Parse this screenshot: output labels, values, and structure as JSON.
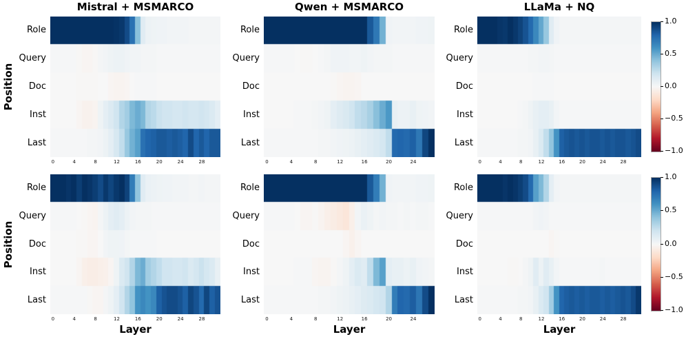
{
  "figure": {
    "xlabel": "Layer",
    "ylabel": "Position",
    "background": "#ffffff",
    "colorbar": {
      "tick_labels": [
        "1.0",
        "0.5",
        "0.0",
        "−0.5",
        "−1.0"
      ],
      "tick_values": [
        1.0,
        0.5,
        0.0,
        -0.5,
        -1.0
      ],
      "range": [
        -1.0,
        1.0
      ]
    },
    "colormap": {
      "name": "RdBu",
      "stops": [
        "#67001f",
        "#b2182b",
        "#d6604d",
        "#f4a582",
        "#fddbc7",
        "#f7f7f7",
        "#d1e5f0",
        "#92c5de",
        "#4393c3",
        "#2166ac",
        "#053061"
      ]
    }
  },
  "chart_data": [
    {
      "type": "heatmap",
      "title": "Mistral + MSMARCO",
      "rows": [
        "Role",
        "Query",
        "Doc",
        "Inst",
        "Last"
      ],
      "n_layers": 32,
      "xticks": [
        0,
        4,
        8,
        12,
        16,
        20,
        24,
        28
      ],
      "zlim": [
        -1,
        1
      ],
      "values": [
        [
          1,
          1,
          1,
          1,
          1,
          1,
          1,
          1,
          1,
          1,
          1,
          1,
          0.99,
          0.97,
          0.9,
          0.75,
          0.42,
          0.12,
          0.06,
          0.05,
          0.04,
          0.04,
          0.03,
          0.03,
          0.03,
          0.03,
          0.02,
          0.02,
          0.02,
          0.02,
          0.02,
          0.02
        ],
        [
          0.01,
          0.01,
          0.01,
          0.01,
          0.01,
          -0.01,
          -0.02,
          -0.02,
          -0.01,
          0.02,
          0.03,
          0.05,
          0.06,
          0.06,
          0.04,
          0.03,
          0.03,
          0.02,
          0.02,
          0.02,
          0.01,
          0.01,
          0.01,
          0.01,
          0.01,
          0.01,
          0.01,
          0.01,
          0.01,
          0.01,
          0.01,
          0.01
        ],
        [
          0,
          0,
          0,
          0,
          0,
          -0.01,
          -0.01,
          -0.01,
          -0.01,
          0,
          0,
          -0.02,
          -0.03,
          -0.03,
          -0.02,
          0,
          0.01,
          0.01,
          0.01,
          0.01,
          0,
          0,
          0,
          0,
          0,
          0,
          0,
          0,
          0,
          0,
          0,
          0
        ],
        [
          0,
          0,
          0,
          0,
          0,
          -0.02,
          -0.04,
          -0.04,
          -0.03,
          0.05,
          0.1,
          0.14,
          0.2,
          0.3,
          0.35,
          0.45,
          0.5,
          0.45,
          0.3,
          0.27,
          0.22,
          0.2,
          0.2,
          0.18,
          0.18,
          0.2,
          0.18,
          0.18,
          0.2,
          0.18,
          0.15,
          0.1
        ],
        [
          0.01,
          0.01,
          0.01,
          0.01,
          0.01,
          0.01,
          0.01,
          0.02,
          0.02,
          0.03,
          0.06,
          0.1,
          0.17,
          0.25,
          0.38,
          0.48,
          0.55,
          0.75,
          0.8,
          0.82,
          0.85,
          0.85,
          0.83,
          0.85,
          0.83,
          0.8,
          0.9,
          0.8,
          0.85,
          0.8,
          0.85,
          0.85
        ]
      ]
    },
    {
      "type": "heatmap",
      "title": "Qwen + MSMARCO",
      "rows": [
        "Role",
        "Query",
        "Doc",
        "Inst",
        "Last"
      ],
      "n_layers": 28,
      "xticks": [
        0,
        4,
        8,
        12,
        16,
        20,
        24
      ],
      "zlim": [
        -1,
        1
      ],
      "values": [
        [
          1,
          1,
          1,
          1,
          1,
          1,
          1,
          1,
          1,
          1,
          1,
          1,
          1,
          1,
          1,
          1,
          1,
          0.85,
          0.72,
          0.48,
          0.04,
          0.03,
          0.03,
          0.03,
          0.03,
          0.04,
          0.04,
          0.05
        ],
        [
          0.01,
          0.01,
          0.01,
          0.01,
          0.01,
          0,
          -0.01,
          -0.01,
          0,
          0.01,
          0.02,
          0.04,
          0.04,
          0.04,
          0.03,
          0.03,
          0.05,
          0.03,
          0.02,
          0.02,
          0.02,
          0.01,
          0.01,
          0.01,
          0.01,
          0.01,
          0.01,
          0.01
        ],
        [
          0,
          0,
          0,
          0,
          0,
          0,
          0,
          0,
          0,
          0,
          0,
          -0.01,
          -0.02,
          -0.03,
          -0.03,
          -0.02,
          0,
          0,
          0,
          0,
          0,
          0,
          0,
          0,
          0,
          0,
          0,
          0
        ],
        [
          0,
          0,
          0,
          0,
          0,
          0.01,
          0.01,
          0.01,
          0.02,
          0.03,
          0.05,
          0.1,
          0.13,
          0.16,
          0.2,
          0.25,
          0.28,
          0.33,
          0.42,
          0.5,
          0.58,
          0.08,
          0.06,
          0.06,
          0.08,
          0.05,
          0.04,
          0.03
        ],
        [
          0.01,
          0.01,
          0.01,
          0.01,
          0.01,
          0.01,
          0.01,
          0.01,
          0.01,
          0.02,
          0.02,
          0.03,
          0.04,
          0.05,
          0.06,
          0.08,
          0.1,
          0.12,
          0.15,
          0.18,
          0.25,
          0.78,
          0.8,
          0.78,
          0.82,
          0.72,
          0.92,
          1
        ]
      ]
    },
    {
      "type": "heatmap",
      "title": "LLaMa + NQ",
      "rows": [
        "Role",
        "Query",
        "Doc",
        "Inst",
        "Last"
      ],
      "n_layers": 32,
      "xticks": [
        0,
        4,
        8,
        12,
        16,
        20,
        24,
        28
      ],
      "zlim": [
        -1,
        1
      ],
      "values": [
        [
          1,
          1,
          1,
          1,
          0.98,
          0.97,
          1,
          0.97,
          0.93,
          0.87,
          0.78,
          0.65,
          0.52,
          0.38,
          0.12,
          0.04,
          0.02,
          0.02,
          0.02,
          0.02,
          0.02,
          0.02,
          0.02,
          0.02,
          0.02,
          0.02,
          0.02,
          0.02,
          0.02,
          0.02,
          0.02,
          0.02
        ],
        [
          0.01,
          0.01,
          0.01,
          0.01,
          0.01,
          0.01,
          0.01,
          0.01,
          0.01,
          0.01,
          0.02,
          0.02,
          0.03,
          0.03,
          0.02,
          0.01,
          0.01,
          0.01,
          0.01,
          0.01,
          0.01,
          0.01,
          0.01,
          0.01,
          0.01,
          0.01,
          0.01,
          0.01,
          0.01,
          0.01,
          0.01,
          0.01
        ],
        [
          0,
          0,
          0,
          0,
          0,
          0,
          0,
          0,
          0,
          0,
          0,
          0.01,
          0.01,
          0.01,
          0.01,
          0,
          0,
          0,
          0,
          0,
          0,
          0,
          0,
          0,
          0,
          0,
          0,
          0,
          0,
          0,
          0,
          0
        ],
        [
          0,
          0,
          0,
          0,
          0,
          0,
          0,
          0,
          0.01,
          0.02,
          0.05,
          0.08,
          0.1,
          0.1,
          0.08,
          0.03,
          0.01,
          0.01,
          0.01,
          0.01,
          0.01,
          0.01,
          0.01,
          0.01,
          0.01,
          0.01,
          0.01,
          0.01,
          0.01,
          0.01,
          0.01,
          0.01
        ],
        [
          0.01,
          0.01,
          0.01,
          0.01,
          0.01,
          0.01,
          0.01,
          0.01,
          0.02,
          0.02,
          0.03,
          0.08,
          0.15,
          0.25,
          0.4,
          0.6,
          0.82,
          0.85,
          0.87,
          0.85,
          0.87,
          0.85,
          0.87,
          0.87,
          0.85,
          0.87,
          0.85,
          0.87,
          0.87,
          0.85,
          0.87,
          0.9
        ]
      ]
    },
    {
      "type": "heatmap",
      "title": "",
      "rows": [
        "Role",
        "Query",
        "Doc",
        "Inst",
        "Last"
      ],
      "n_layers": 32,
      "xticks": [
        0,
        4,
        8,
        12,
        16,
        20,
        24,
        28
      ],
      "zlim": [
        -1,
        1
      ],
      "values": [
        [
          1,
          1,
          1,
          0.98,
          1,
          0.95,
          1,
          0.98,
          0.95,
          0.9,
          0.97,
          0.92,
          0.97,
          1,
          0.93,
          0.7,
          0.4,
          0.12,
          0.07,
          0.06,
          0.05,
          0.04,
          0.04,
          0.03,
          0.03,
          0.03,
          0.02,
          0.02,
          0.03,
          0.02,
          0.02,
          0.02
        ],
        [
          0.01,
          0.01,
          0.01,
          0.01,
          0.01,
          0,
          -0.01,
          -0.02,
          -0.03,
          0.02,
          0.06,
          0.1,
          0.12,
          0.1,
          0.06,
          0.03,
          0.02,
          0.02,
          0.02,
          0.01,
          0.01,
          0.01,
          0.01,
          0.01,
          0.01,
          0.01,
          0.01,
          0.01,
          0.01,
          0.01,
          0.01,
          0.01
        ],
        [
          0,
          0,
          0,
          0,
          0,
          -0.01,
          -0.01,
          -0.02,
          -0.02,
          0,
          0.03,
          0.05,
          0.05,
          0.04,
          0.02,
          0.01,
          0.01,
          0.01,
          0.01,
          0.01,
          0,
          0,
          0,
          0,
          0,
          0,
          0,
          0,
          0,
          0,
          0,
          0
        ],
        [
          0,
          0,
          0,
          0,
          0,
          -0.02,
          -0.06,
          -0.07,
          -0.07,
          -0.06,
          -0.05,
          -0.02,
          0.05,
          0.15,
          0.2,
          0.3,
          0.45,
          0.5,
          0.35,
          0.3,
          0.25,
          0.2,
          0.2,
          0.18,
          0.18,
          0.2,
          0.15,
          0.18,
          0.22,
          0.18,
          0.15,
          0.08
        ],
        [
          0.01,
          0.01,
          0.01,
          0.01,
          0.01,
          0.01,
          0.01,
          -0.01,
          -0.02,
          -0.02,
          0.02,
          0.05,
          0.1,
          0.2,
          0.3,
          0.4,
          0.6,
          0.65,
          0.6,
          0.65,
          0.82,
          0.87,
          0.9,
          0.9,
          0.87,
          0.82,
          0.92,
          0.87,
          0.78,
          0.92,
          0.82,
          0.87
        ]
      ]
    },
    {
      "type": "heatmap",
      "title": "",
      "rows": [
        "Role",
        "Query",
        "Doc",
        "Inst",
        "Last"
      ],
      "n_layers": 28,
      "xticks": [
        0,
        4,
        8,
        12,
        16,
        20,
        24
      ],
      "zlim": [
        -1,
        1
      ],
      "values": [
        [
          1,
          1,
          1,
          1,
          1,
          1,
          1,
          1,
          1,
          1,
          1,
          1,
          1,
          1,
          1,
          1,
          1,
          0.85,
          0.7,
          0.48,
          0.04,
          0.03,
          0.03,
          0.03,
          0.03,
          0.04,
          0.04,
          0.05
        ],
        [
          0.01,
          0.01,
          0.01,
          0.01,
          0.01,
          0,
          -0.02,
          -0.02,
          -0.01,
          -0.03,
          -0.06,
          -0.08,
          -0.1,
          -0.12,
          -0.06,
          0.03,
          0.07,
          0.05,
          0.02,
          0.03,
          0.02,
          0.02,
          0.01,
          0.02,
          0.01,
          0.02,
          0.02,
          0.01
        ],
        [
          0,
          0,
          0,
          0,
          0,
          0,
          0,
          0,
          0,
          0,
          0,
          0,
          0,
          -0.02,
          -0.05,
          -0.02,
          0,
          0,
          0,
          0,
          0,
          0,
          0,
          0,
          0,
          0,
          0,
          0
        ],
        [
          0,
          0,
          0,
          0,
          0,
          0.01,
          0.01,
          0.01,
          -0.02,
          -0.03,
          -0.03,
          -0.01,
          0.02,
          0.05,
          0.1,
          0.15,
          0.12,
          0.25,
          0.45,
          0.55,
          0.1,
          0.08,
          0.08,
          0.06,
          0.08,
          0.04,
          0.03,
          0.02
        ],
        [
          0.01,
          0.01,
          0.01,
          0.01,
          0.01,
          0.01,
          0.01,
          0.01,
          0.01,
          0.02,
          0.02,
          0.03,
          0.05,
          0.06,
          0.08,
          0.1,
          0.13,
          0.15,
          0.18,
          0.2,
          0.3,
          0.7,
          0.8,
          0.78,
          0.83,
          0.73,
          0.9,
          1
        ]
      ]
    },
    {
      "type": "heatmap",
      "title": "",
      "rows": [
        "Role",
        "Query",
        "Doc",
        "Inst",
        "Last"
      ],
      "n_layers": 32,
      "xticks": [
        0,
        4,
        8,
        12,
        16,
        20,
        24,
        28
      ],
      "zlim": [
        -1,
        1
      ],
      "values": [
        [
          1,
          1,
          1,
          1,
          1,
          0.98,
          1,
          0.98,
          0.95,
          0.9,
          0.78,
          0.55,
          0.45,
          0.3,
          0.1,
          0.03,
          0.02,
          0.02,
          0.02,
          0.02,
          0.02,
          0.02,
          0.02,
          0.02,
          0.02,
          0.02,
          0.02,
          0.02,
          0.02,
          0.02,
          0.02,
          0.02
        ],
        [
          0.01,
          0.01,
          0.01,
          0.01,
          0.01,
          0.01,
          0.01,
          0.01,
          0.01,
          0.01,
          0.01,
          0.03,
          0.04,
          0.03,
          0.01,
          0.01,
          0.01,
          0.01,
          0.01,
          0.01,
          0.01,
          0.01,
          0.01,
          0.01,
          0.01,
          0.01,
          0.01,
          0.01,
          0.01,
          0.01,
          0.01,
          0.01
        ],
        [
          0,
          0,
          0,
          0,
          0,
          0,
          0,
          0,
          0,
          0,
          0,
          0,
          0,
          0,
          -0.02,
          -0.01,
          0,
          0,
          0,
          0,
          0,
          0,
          0,
          0,
          0,
          0,
          0,
          0,
          0,
          0,
          0,
          0
        ],
        [
          0,
          0,
          0,
          0,
          0,
          0,
          -0.01,
          -0.01,
          0,
          0.02,
          0.05,
          0.12,
          0.06,
          0.12,
          0.08,
          0.03,
          0.01,
          0.01,
          0.01,
          0.01,
          0.01,
          0.01,
          0.01,
          0.01,
          0.02,
          0.01,
          0.01,
          0.01,
          0.01,
          0.01,
          0.01,
          0.01
        ],
        [
          0.01,
          0.01,
          0.01,
          0.01,
          0.01,
          0.01,
          0.01,
          0.01,
          0.02,
          0.02,
          0.03,
          0.08,
          0.15,
          0.2,
          0.35,
          0.6,
          0.8,
          0.83,
          0.85,
          0.83,
          0.85,
          0.83,
          0.85,
          0.85,
          0.83,
          0.85,
          0.83,
          0.85,
          0.87,
          0.85,
          0.9,
          0.97
        ]
      ]
    }
  ]
}
